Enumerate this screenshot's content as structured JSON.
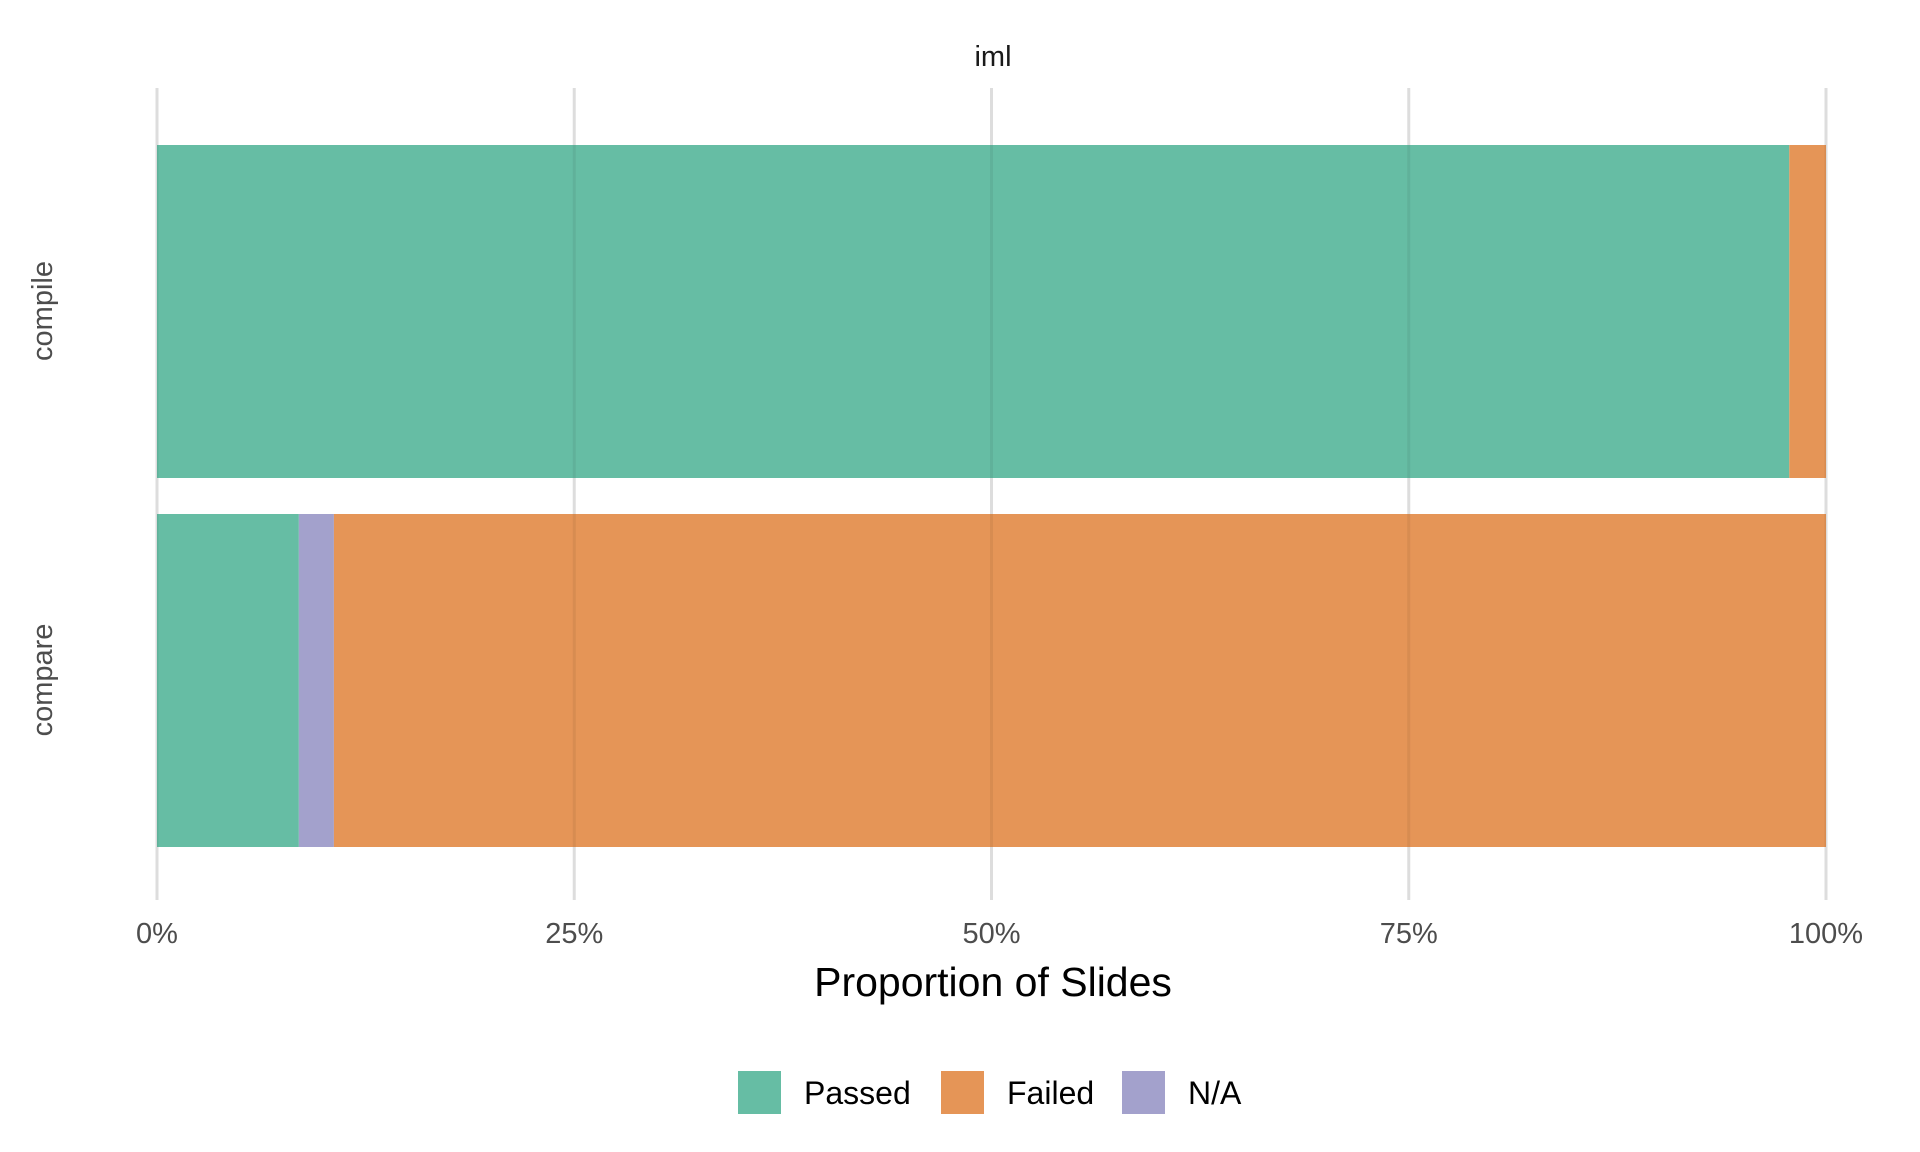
{
  "chart_data": {
    "type": "bar",
    "orientation": "horizontal",
    "stacked": true,
    "facet_title": "iml",
    "title": "",
    "xlabel": "Proportion of Slides",
    "ylabel": "",
    "categories": [
      "compile",
      "compare"
    ],
    "series": [
      {
        "name": "Passed",
        "color": "#66bda4",
        "values": [
          0.978,
          0.085
        ]
      },
      {
        "name": "Failed",
        "color": "#e59557",
        "values": [
          0.022,
          0.894
        ]
      },
      {
        "name": "N/A",
        "color": "#a3a1cc",
        "values": [
          0.0,
          0.021
        ]
      }
    ],
    "stack_order": [
      "Passed",
      "N/A",
      "Failed"
    ],
    "xlim": [
      0,
      1
    ],
    "xticks": [
      0,
      0.25,
      0.5,
      0.75,
      1
    ],
    "xtick_labels": [
      "0%",
      "25%",
      "50%",
      "75%",
      "100%"
    ],
    "grid": true,
    "legend_position": "bottom"
  }
}
